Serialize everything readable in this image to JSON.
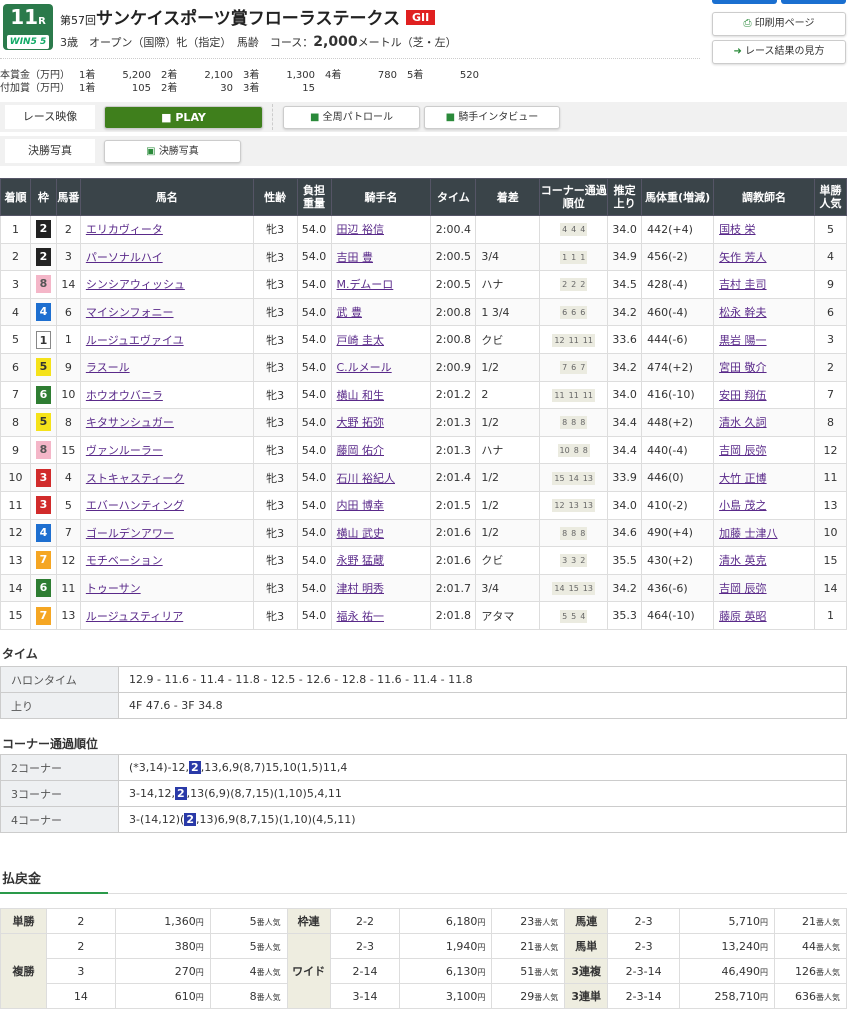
{
  "header": {
    "race_no": "11",
    "race_suffix": "R",
    "win5": "WIN5 5",
    "edition": "第57回",
    "race_name": "サンケイスポーツ賞フローラステークス",
    "grade": "GII",
    "conditions": "3歳　オープン（国際）牝（指定）　馬齢　コース：",
    "distance": "2,000",
    "distance_unit": "メートル（芝・左）"
  },
  "prize": {
    "main_label": "本賞金（万円）",
    "main": [
      [
        "1着",
        "5,200"
      ],
      [
        "2着",
        "2,100"
      ],
      [
        "3着",
        "1,300"
      ],
      [
        "4着",
        "780"
      ],
      [
        "5着",
        "520"
      ]
    ],
    "add_label": "付加賞（万円）",
    "add": [
      [
        "1着",
        "105"
      ],
      [
        "2着",
        "30"
      ],
      [
        "3着",
        "15"
      ]
    ]
  },
  "buttons": {
    "print": "印刷用ページ",
    "guide": "レース結果の見方"
  },
  "video": {
    "label": "レース映像",
    "play": "PLAY",
    "patrol": "全周パトロール",
    "interview": "騎手インタビュー",
    "photo_label": "決勝写真",
    "photo": "決勝写真"
  },
  "results": {
    "headers": [
      "着順",
      "枠",
      "馬番",
      "馬名",
      "性齢",
      "負担重量",
      "騎手名",
      "タイム",
      "着差",
      "コーナー通過順位",
      "推定上り",
      "馬体重(増減)",
      "調教師名",
      "単勝人気"
    ],
    "rows": [
      [
        "1",
        "2",
        "2",
        "エリカヴィータ",
        "牝3",
        "54.0",
        "田辺 裕信",
        "2:00.4",
        "",
        [
          "4",
          "4",
          "4"
        ],
        "34.0",
        "442(+4)",
        "国枝 栄",
        "5"
      ],
      [
        "2",
        "2",
        "3",
        "パーソナルハイ",
        "牝3",
        "54.0",
        "吉田 豊",
        "2:00.5",
        "3/4",
        [
          "1",
          "1",
          "1"
        ],
        "34.9",
        "456(-2)",
        "矢作 芳人",
        "4"
      ],
      [
        "3",
        "8",
        "14",
        "シンシアウィッシュ",
        "牝3",
        "54.0",
        "M.デムーロ",
        "2:00.5",
        "ハナ",
        [
          "2",
          "2",
          "2"
        ],
        "34.5",
        "428(-4)",
        "吉村 圭司",
        "9"
      ],
      [
        "4",
        "4",
        "6",
        "マイシンフォニー",
        "牝3",
        "54.0",
        "武 豊",
        "2:00.8",
        "1 3/4",
        [
          "6",
          "6",
          "6"
        ],
        "34.2",
        "460(-4)",
        "松永 幹夫",
        "6"
      ],
      [
        "5",
        "1",
        "1",
        "ルージュエヴァイユ",
        "牝3",
        "54.0",
        "戸崎 圭太",
        "2:00.8",
        "クビ",
        [
          "12",
          "11",
          "11"
        ],
        "33.6",
        "444(-6)",
        "黒岩 陽一",
        "3"
      ],
      [
        "6",
        "5",
        "9",
        "ラスール",
        "牝3",
        "54.0",
        "C.ルメール",
        "2:00.9",
        "1/2",
        [
          "7",
          "6",
          "7"
        ],
        "34.2",
        "474(+2)",
        "宮田 敬介",
        "2"
      ],
      [
        "7",
        "6",
        "10",
        "ホウオウバニラ",
        "牝3",
        "54.0",
        "横山 和生",
        "2:01.2",
        "2",
        [
          "11",
          "11",
          "11"
        ],
        "34.0",
        "416(-10)",
        "安田 翔伍",
        "7"
      ],
      [
        "8",
        "5",
        "8",
        "キタサンシュガー",
        "牝3",
        "54.0",
        "大野 拓弥",
        "2:01.3",
        "1/2",
        [
          "8",
          "8",
          "8"
        ],
        "34.4",
        "448(+2)",
        "清水 久詞",
        "8"
      ],
      [
        "9",
        "8",
        "15",
        "ヴァンルーラー",
        "牝3",
        "54.0",
        "藤岡 佑介",
        "2:01.3",
        "ハナ",
        [
          "10",
          "8",
          "8"
        ],
        "34.4",
        "440(-4)",
        "吉岡 辰弥",
        "12"
      ],
      [
        "10",
        "3",
        "4",
        "ストキャスティーク",
        "牝3",
        "54.0",
        "石川 裕紀人",
        "2:01.4",
        "1/2",
        [
          "15",
          "14",
          "13"
        ],
        "33.9",
        "446(0)",
        "大竹 正博",
        "11"
      ],
      [
        "11",
        "3",
        "5",
        "エバーハンティング",
        "牝3",
        "54.0",
        "内田 博幸",
        "2:01.5",
        "1/2",
        [
          "12",
          "13",
          "13"
        ],
        "34.0",
        "410(-2)",
        "小島 茂之",
        "13"
      ],
      [
        "12",
        "4",
        "7",
        "ゴールデンアワー",
        "牝3",
        "54.0",
        "横山 武史",
        "2:01.6",
        "1/2",
        [
          "8",
          "8",
          "8"
        ],
        "34.6",
        "490(+4)",
        "加藤 士津八",
        "10"
      ],
      [
        "13",
        "7",
        "12",
        "モチベーション",
        "牝3",
        "54.0",
        "永野 猛蔵",
        "2:01.6",
        "クビ",
        [
          "3",
          "3",
          "2"
        ],
        "35.5",
        "430(+2)",
        "清水 英克",
        "15"
      ],
      [
        "14",
        "6",
        "11",
        "トゥーサン",
        "牝3",
        "54.0",
        "津村 明秀",
        "2:01.7",
        "3/4",
        [
          "14",
          "15",
          "13"
        ],
        "34.2",
        "436(-6)",
        "吉岡 辰弥",
        "14"
      ],
      [
        "15",
        "7",
        "13",
        "ルージュスティリア",
        "牝3",
        "54.0",
        "福永 祐一",
        "2:01.8",
        "アタマ",
        [
          "5",
          "5",
          "4"
        ],
        "35.3",
        "464(-10)",
        "藤原 英昭",
        "1"
      ]
    ]
  },
  "waku_colors": {
    "1": "#ffffff",
    "2": "#222222",
    "3": "#d12b2b",
    "4": "#1e6fd0",
    "5": "#f5e21a",
    "6": "#2e7d32",
    "7": "#f5a623",
    "8": "#f4b6c8"
  },
  "time": {
    "title": "タイム",
    "rows": [
      [
        "ハロンタイム",
        "12.9 - 11.6 - 11.4 - 11.8 - 12.5 - 12.6 - 12.8 - 11.6 - 11.4 - 11.8"
      ],
      [
        "上り",
        "4F 47.6 - 3F 34.8"
      ]
    ]
  },
  "corner": {
    "title": "コーナー通過順位",
    "rows": [
      {
        "label": "2コーナー",
        "pre": "(*3,14)-12,",
        "hl": "2",
        "post": ",13,6,9(8,7)15,10(1,5)11,4"
      },
      {
        "label": "3コーナー",
        "pre": "3-14,12,",
        "hl": "2",
        "post": ",13(6,9)(8,7,15)(1,10)5,4,11"
      },
      {
        "label": "4コーナー",
        "pre": "3-(14,12)(",
        "hl": "2",
        "post": ",13)6,9(8,7,15)(1,10)(4,5,11)"
      }
    ]
  },
  "payout": {
    "title": "払戻金",
    "pop_suffix": "番人気",
    "yen": "円",
    "tansho": {
      "label": "単勝",
      "rows": [
        [
          "2",
          "1,360",
          "5"
        ]
      ]
    },
    "fukusho": {
      "label": "複勝",
      "rows": [
        [
          "2",
          "380",
          "5"
        ],
        [
          "3",
          "270",
          "4"
        ],
        [
          "14",
          "610",
          "8"
        ]
      ]
    },
    "wakuren": {
      "label": "枠連",
      "rows": [
        [
          "2-2",
          "6,180",
          "23"
        ]
      ]
    },
    "wide": {
      "label": "ワイド",
      "rows": [
        [
          "2-3",
          "1,940",
          "21"
        ],
        [
          "2-14",
          "6,130",
          "51"
        ],
        [
          "3-14",
          "3,100",
          "29"
        ]
      ]
    },
    "right": [
      {
        "label": "馬連",
        "v": [
          "2-3",
          "5,710",
          "21"
        ]
      },
      {
        "label": "馬単",
        "v": [
          "2-3",
          "13,240",
          "44"
        ]
      },
      {
        "label": "3連複",
        "v": [
          "2-3-14",
          "46,490",
          "126"
        ]
      },
      {
        "label": "3連単",
        "v": [
          "2-3-14",
          "258,710",
          "636"
        ]
      }
    ]
  }
}
